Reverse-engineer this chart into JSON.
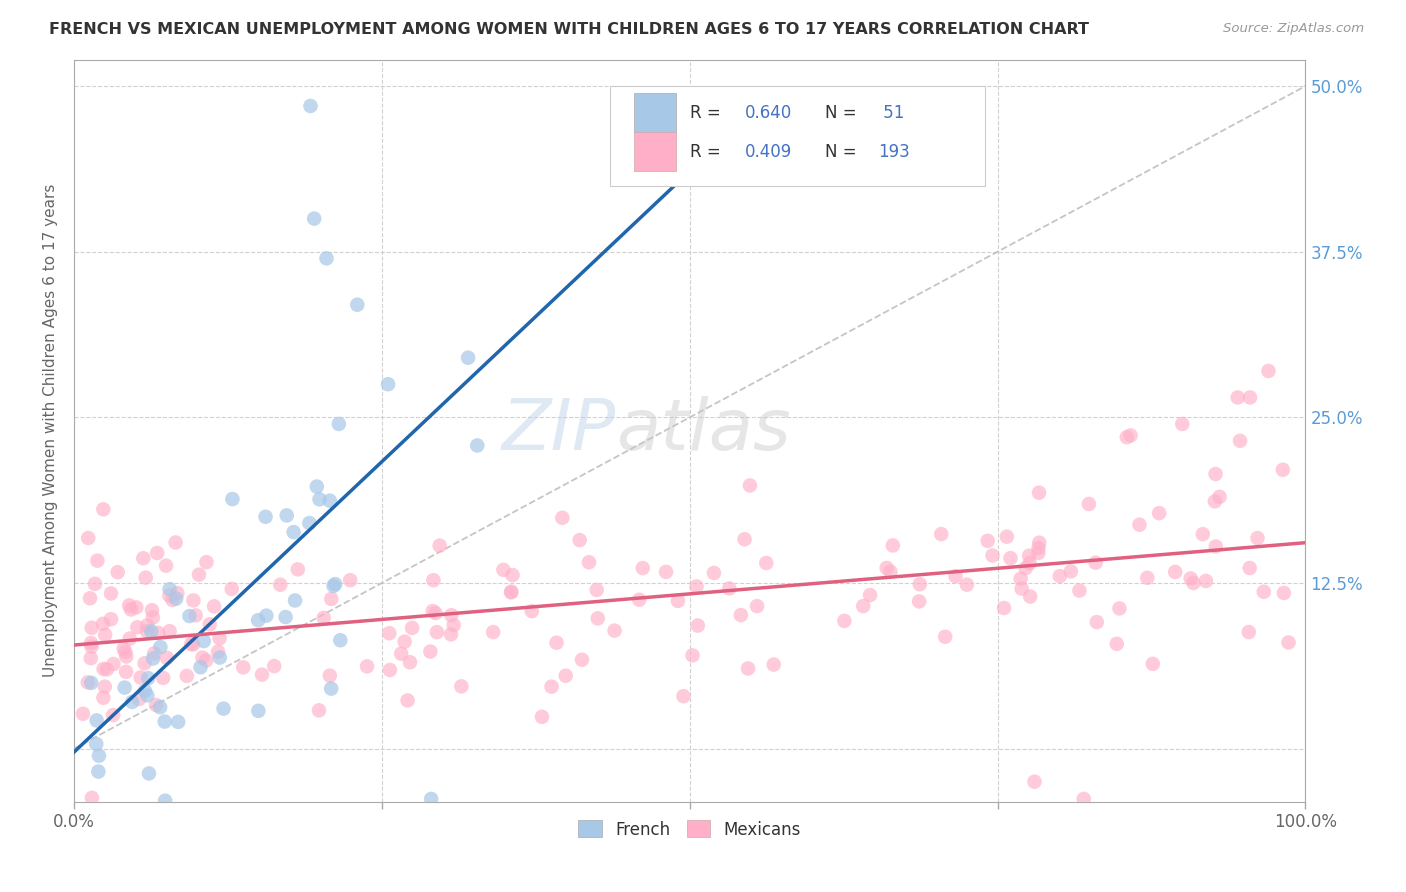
{
  "title": "FRENCH VS MEXICAN UNEMPLOYMENT AMONG WOMEN WITH CHILDREN AGES 6 TO 17 YEARS CORRELATION CHART",
  "source": "Source: ZipAtlas.com",
  "ylabel": "Unemployment Among Women with Children Ages 6 to 17 years",
  "xlim": [
    0,
    1.0
  ],
  "ylim": [
    -0.04,
    0.52
  ],
  "french_R": "0.640",
  "french_N": "51",
  "mexican_R": "0.409",
  "mexican_N": "193",
  "french_color": "#a8c8e8",
  "mexican_color": "#ffb0c8",
  "french_line_color": "#2166ac",
  "mexican_line_color": "#e06080",
  "diag_color": "#bbbbbb",
  "background_color": "#ffffff",
  "grid_color": "#cccccc",
  "title_color": "#333333",
  "right_label_color": "#5b9bd5",
  "label_color": "#666666",
  "legend_text_color": "#333333",
  "legend_value_color": "#4472c4",
  "watermark_color": "#d0e4f0"
}
